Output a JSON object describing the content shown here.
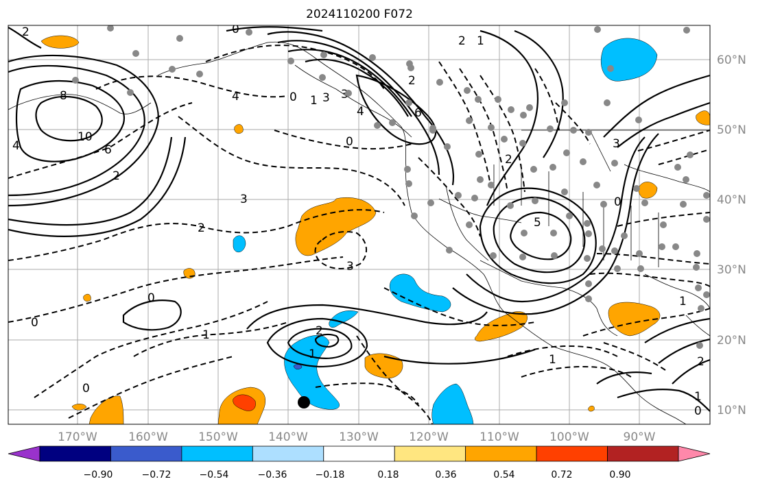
{
  "title": "2024110200 F072",
  "longitude_labels": [
    "170°W",
    "160°W",
    "150°W",
    "140°W",
    "130°W",
    "120°W",
    "110°W",
    "100°W",
    "90°W"
  ],
  "latitude_labels": [
    "60°N",
    "50°N",
    "40°N",
    "30°N",
    "20°N",
    "10°N"
  ],
  "colorbar": {
    "tick_labels": [
      "−0.90",
      "−0.72",
      "−0.54",
      "−0.36",
      "−0.18",
      "0.18",
      "0.36",
      "0.54",
      "0.72",
      "0.90"
    ],
    "colors": [
      "#9932CC",
      "#000080",
      "#3A5BCC",
      "#00BFFF",
      "#ADDFFF",
      "#FFFFFF",
      "#FFE680",
      "#FFA500",
      "#FF4000",
      "#B22222",
      "#FF88AA"
    ]
  },
  "contour_labels": [
    "2",
    "0",
    "8",
    "10",
    "4",
    "6",
    "2",
    "3",
    "0",
    "3",
    "4",
    "6",
    "0",
    "2",
    "3",
    "2",
    "0",
    "1",
    "2",
    "1",
    "0",
    "3",
    "1",
    "4",
    "2",
    "5",
    "3",
    "2",
    "1",
    "0",
    "1",
    "2",
    "1",
    "0",
    "1",
    "0"
  ],
  "markers": {
    "station_dot_color": "#888888",
    "storm_dot_color": "#000000"
  }
}
